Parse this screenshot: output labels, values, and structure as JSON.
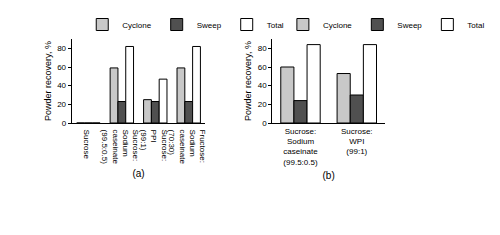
{
  "chart_data": [
    {
      "type": "bar",
      "x_label": "(a)",
      "y_label": "Powder recovery, %",
      "categories": [
        "Sucrose",
        "Sucrose:\nSodium\ncaseinate\n(99.5:0.5)",
        "Sucrose:\nPPI\n(99:1)",
        "Fructose:\nSodium\ncaseinate\n(70:30)"
      ],
      "series": [
        {
          "name": "Cyclone",
          "color": "#c8c8c8",
          "values": [
            0,
            59,
            25,
            59
          ]
        },
        {
          "name": "Sweep",
          "color": "#505050",
          "values": [
            0,
            23,
            23,
            23
          ]
        },
        {
          "name": "Total",
          "color": "#ffffff",
          "values": [
            0,
            82,
            47,
            82
          ]
        }
      ],
      "ylim": [
        0,
        90
      ],
      "yticks": [
        0,
        20,
        40,
        60,
        80
      ],
      "grid": false,
      "legend": "top"
    },
    {
      "type": "bar",
      "x_label": "(b)",
      "y_label": "Powder recovery, %",
      "categories": [
        "Sucrose:\nSodium\ncaseinate\n(99.5:0.5)",
        "Sucrose:\nWPI\n(99:1)"
      ],
      "series": [
        {
          "name": "Cyclone",
          "color": "#c8c8c8",
          "values": [
            60,
            53
          ]
        },
        {
          "name": "Sweep",
          "color": "#505050",
          "values": [
            24,
            30
          ]
        },
        {
          "name": "Total",
          "color": "#ffffff",
          "values": [
            84,
            84
          ]
        }
      ],
      "ylim": [
        0,
        90
      ],
      "yticks": [
        0,
        20,
        40,
        60,
        80
      ],
      "grid": false,
      "legend": "top"
    }
  ]
}
